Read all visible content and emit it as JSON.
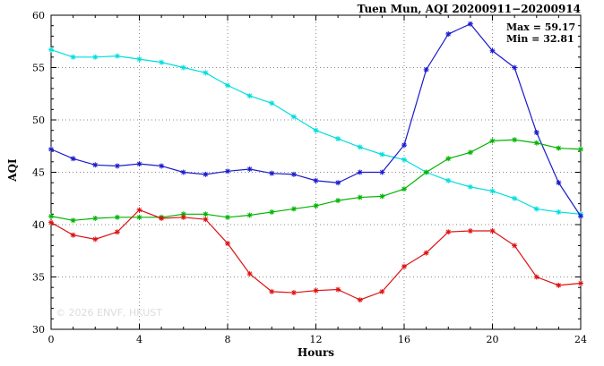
{
  "watermark": "© 2026 ENVF, HKUST",
  "chart_data": {
    "type": "line",
    "title": "Tuen Mun, AQI 20200911−20200914",
    "xlabel": "Hours",
    "ylabel": "AQI",
    "xlim": [
      0,
      24
    ],
    "ylim": [
      30,
      60
    ],
    "x_major_ticks": [
      0,
      4,
      8,
      12,
      16,
      20,
      24
    ],
    "y_major_ticks": [
      30,
      35,
      40,
      45,
      50,
      55,
      60
    ],
    "grid": "dotted",
    "legend": "none",
    "marker": "asterisk",
    "annotations": [
      "Max = 59.17",
      "Min = 32.81"
    ],
    "x": [
      0,
      1,
      2,
      3,
      4,
      5,
      6,
      7,
      8,
      9,
      10,
      11,
      12,
      13,
      14,
      15,
      16,
      17,
      18,
      19,
      20,
      21,
      22,
      23,
      24
    ],
    "series": [
      {
        "name": "cyan-series",
        "color": "#00dede",
        "values": [
          56.7,
          56.0,
          56.0,
          56.1,
          55.8,
          55.5,
          55.0,
          54.5,
          53.3,
          52.3,
          51.6,
          50.3,
          49.0,
          48.2,
          47.4,
          46.7,
          46.2,
          45.0,
          44.2,
          43.6,
          43.2,
          42.5,
          41.5,
          41.2,
          41.0
        ]
      },
      {
        "name": "blue-series",
        "color": "#1a1acc",
        "values": [
          47.2,
          46.3,
          45.7,
          45.6,
          45.8,
          45.6,
          45.0,
          44.8,
          45.1,
          45.3,
          44.9,
          44.8,
          44.2,
          44.0,
          45.0,
          45.0,
          47.6,
          54.8,
          58.2,
          59.17,
          56.6,
          55.0,
          48.8,
          44.0,
          40.8
        ]
      },
      {
        "name": "green-series",
        "color": "#00b400",
        "values": [
          40.8,
          40.4,
          40.6,
          40.7,
          40.7,
          40.7,
          41.0,
          41.0,
          40.7,
          40.9,
          41.2,
          41.5,
          41.8,
          42.3,
          42.6,
          42.7,
          43.4,
          45.0,
          46.3,
          46.9,
          48.0,
          48.1,
          47.8,
          47.3,
          47.2
        ]
      },
      {
        "name": "red-series",
        "color": "#dd1111",
        "values": [
          40.2,
          39.0,
          38.6,
          39.3,
          41.4,
          40.6,
          40.7,
          40.5,
          38.2,
          35.3,
          33.6,
          33.5,
          33.7,
          33.8,
          32.81,
          33.6,
          36.0,
          37.3,
          39.3,
          39.4,
          39.4,
          38.0,
          35.0,
          34.2,
          34.4
        ]
      }
    ]
  }
}
